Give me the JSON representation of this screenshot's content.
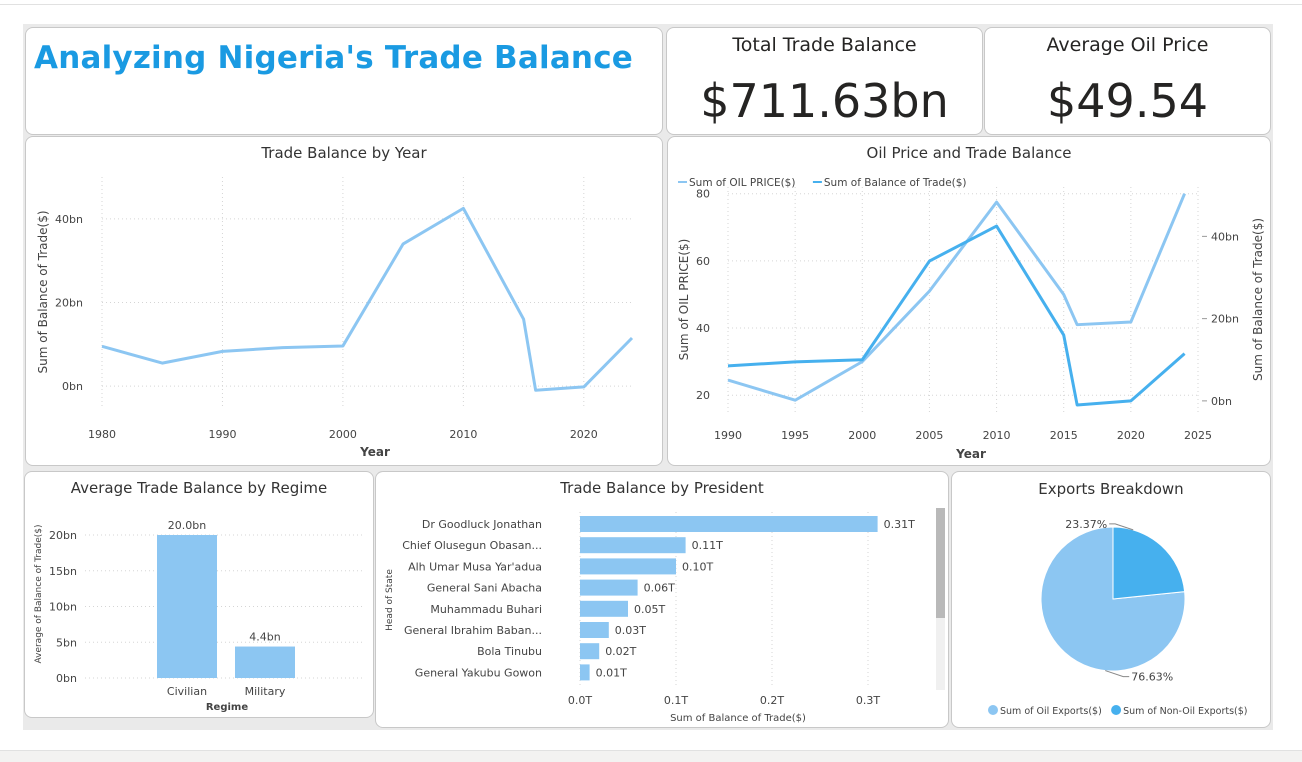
{
  "header": {
    "title": "Analyzing Nigeria's Trade Balance"
  },
  "kpis": [
    {
      "label": "Total Trade Balance",
      "value": "$711.63bn"
    },
    {
      "label": "Average Oil Price",
      "value": "$49.54"
    }
  ],
  "colors": {
    "title_blue": "#1a9ae2",
    "light_blue": "#8cc6f2",
    "mid_blue": "#46b0ee",
    "card_border": "#c8c8c8",
    "gridline": "#d5d5d5"
  },
  "chart_data": [
    {
      "id": "trade-by-year",
      "type": "line",
      "title": "Trade Balance by Year",
      "xlabel": "Year",
      "ylabel": "Sum of Balance of Trade($)",
      "x": [
        1980,
        1985,
        1990,
        1995,
        2000,
        2005,
        2010,
        2015,
        2016,
        2020,
        2024
      ],
      "series": [
        {
          "values": [
            9.5,
            5.5,
            8.3,
            9.2,
            9.6,
            34,
            42.5,
            16,
            -1,
            -0.2,
            11.5
          ],
          "color": "#8cc6f2"
        }
      ],
      "xticks": [
        "1980",
        "1990",
        "2000",
        "2010",
        "2020"
      ],
      "yticks": [
        "0bn",
        "20bn",
        "40bn"
      ],
      "xlim": [
        1980,
        2024
      ],
      "ylim": [
        -5,
        50
      ],
      "grid": true,
      "unit": "bn"
    },
    {
      "id": "oil-vs-trade",
      "type": "line",
      "title": "Oil Price and Trade Balance",
      "xlabel": "Year",
      "ylabel": "Sum of OIL PRICE($)",
      "ylabel_right": "Sum of Balance of Trade($)",
      "legend_position": "top-left",
      "x": [
        1990,
        1995,
        2000,
        2005,
        2010,
        2015,
        2016,
        2020,
        2024
      ],
      "series": [
        {
          "name": "Sum of OIL PRICE($)",
          "axis": "left",
          "values": [
            24.5,
            18.5,
            30,
            51,
            77.5,
            50,
            41,
            41.8,
            80
          ],
          "color": "#8cc6f2"
        },
        {
          "name": "Sum of Balance of Trade($)",
          "axis": "right",
          "values": [
            8.5,
            9.5,
            10,
            34,
            42.5,
            16,
            -1,
            0,
            11.5
          ],
          "color": "#46b0ee"
        }
      ],
      "xticks": [
        "1990",
        "1995",
        "2000",
        "2005",
        "2010",
        "2015",
        "2020",
        "2025"
      ],
      "yticks_left": [
        "20",
        "40",
        "60",
        "80"
      ],
      "yticks_right": [
        "0bn",
        "20bn",
        "40bn"
      ],
      "xlim": [
        1990,
        2025
      ],
      "ylim_left": [
        15,
        82
      ],
      "ylim_right": [
        -2.7,
        52
      ],
      "grid": true
    },
    {
      "id": "trade-by-regime",
      "type": "bar",
      "title": "Average Trade Balance by Regime",
      "xlabel": "Regime",
      "ylabel": "Average of Balance of Trade($)",
      "categories": [
        "Civilian",
        "Military"
      ],
      "values": [
        20.0,
        4.4
      ],
      "data_labels": [
        "20.0bn",
        "4.4bn"
      ],
      "yticks": [
        "0bn",
        "5bn",
        "10bn",
        "15bn",
        "20bn"
      ],
      "ylim": [
        0,
        20
      ],
      "grid": true
    },
    {
      "id": "trade-by-president",
      "type": "bar",
      "orientation": "horizontal",
      "title": "Trade Balance by President",
      "xlabel": "Sum of Balance of Trade($)",
      "ylabel": "Head of State",
      "categories": [
        "Dr Goodluck Jonathan",
        "Chief Olusegun Obasan...",
        "Alh Umar Musa Yar'adua",
        "General Sani Abacha",
        "Muhammadu Buhari",
        "General Ibrahim Baban...",
        "Bola Tinubu",
        "General Yakubu Gowon"
      ],
      "values": [
        0.31,
        0.11,
        0.1,
        0.06,
        0.05,
        0.03,
        0.02,
        0.01
      ],
      "data_labels": [
        "0.31T",
        "0.11T",
        "0.10T",
        "0.06T",
        "0.05T",
        "0.03T",
        "0.02T",
        "0.01T"
      ],
      "xticks": [
        "0.0T",
        "0.1T",
        "0.2T",
        "0.3T"
      ],
      "xlim": [
        0,
        0.3
      ],
      "grid": true
    },
    {
      "id": "exports-breakdown",
      "type": "pie",
      "title": "Exports Breakdown",
      "labels": [
        "Sum of Oil Exports($)",
        "Sum of Non-Oil Exports($)"
      ],
      "values": [
        76.63,
        23.37
      ],
      "data_labels": [
        "76.63%",
        "23.37%"
      ],
      "colors": [
        "#8cc6f2",
        "#46b0ee"
      ],
      "legend_position": "bottom"
    }
  ]
}
